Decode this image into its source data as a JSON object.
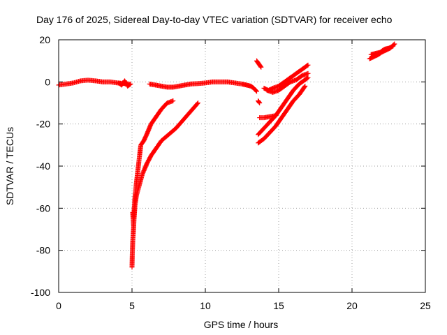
{
  "chart_data": {
    "type": "scatter",
    "title": "Day 176 of 2025, Sidereal Day-to-day VTEC variation (SDTVAR) for receiver echo",
    "xlabel": "GPS time / hours",
    "ylabel": "SDTVAR / TECUs",
    "xlim": [
      0,
      25
    ],
    "ylim": [
      -100,
      20
    ],
    "xticks": [
      "0",
      "5",
      "10",
      "15",
      "20",
      "25"
    ],
    "yticks": [
      "-100",
      "-80",
      "-60",
      "-40",
      "-20",
      "0",
      "20"
    ],
    "grid": true,
    "marker": "plus",
    "color": "#ff0000",
    "series": [
      {
        "x": [
          0.0,
          0.5,
          1.0,
          1.5,
          2.0,
          2.5,
          3.0,
          3.5,
          4.0,
          4.5,
          4.8
        ],
        "y": [
          -1.5,
          -1.0,
          -0.5,
          0.5,
          0.8,
          0.5,
          0.0,
          0.0,
          -0.5,
          -0.8,
          -1.0
        ]
      },
      {
        "x": [
          4.1,
          4.3,
          4.5,
          4.7,
          4.9
        ],
        "y": [
          -0.5,
          -1.5,
          0.5,
          -2.0,
          -1.0
        ]
      },
      {
        "x": [
          6.2,
          6.6,
          7.0,
          7.4,
          7.8,
          8.2,
          8.6,
          9.0,
          9.5,
          10.0,
          10.5,
          11.0,
          11.5,
          12.0,
          12.5,
          12.8,
          13.1,
          13.3,
          13.5
        ],
        "y": [
          -1.0,
          -1.5,
          -2.0,
          -2.5,
          -2.5,
          -2.0,
          -1.5,
          -1.0,
          -0.8,
          -0.5,
          0.0,
          0.0,
          0.0,
          -0.5,
          -1.0,
          -1.5,
          -2.0,
          -3.0,
          -4.5
        ]
      },
      {
        "x": [
          5.05,
          5.1,
          5.15,
          5.2,
          5.3,
          5.4,
          5.5,
          5.6,
          5.8,
          6.0,
          6.3,
          6.7,
          7.0,
          7.4,
          7.8
        ],
        "y": [
          -62,
          -68,
          -60,
          -55,
          -48,
          -42,
          -36,
          -30,
          -28,
          -25,
          -20,
          -16,
          -13,
          -10,
          -9
        ]
      },
      {
        "x": [
          5.0,
          5.02,
          5.05,
          5.1,
          5.15,
          5.2,
          5.3,
          5.5,
          5.7,
          6.0,
          6.3,
          6.7,
          7.0,
          7.5,
          8.0,
          8.5,
          9.0,
          9.5
        ],
        "y": [
          -88,
          -82,
          -76,
          -70,
          -64,
          -59,
          -54,
          -49,
          -44,
          -39,
          -35,
          -31,
          -28,
          -25,
          -22,
          -18,
          -14,
          -10
        ]
      },
      {
        "x": [
          13.5,
          13.6,
          13.7,
          13.8
        ],
        "y": [
          10,
          9,
          8,
          7
        ]
      },
      {
        "x": [
          13.6,
          13.7
        ],
        "y": [
          -9,
          -10
        ]
      },
      {
        "x": [
          13.6,
          14.0,
          14.4,
          14.8,
          15.2,
          15.6,
          16.0,
          16.4,
          16.8,
          17.0
        ],
        "y": [
          -25,
          -22,
          -19,
          -16,
          -12,
          -8,
          -4,
          -1,
          1,
          2
        ]
      },
      {
        "x": [
          13.6,
          14.0,
          14.4,
          14.8,
          15.2,
          15.6,
          16.0,
          16.4,
          16.8
        ],
        "y": [
          -29,
          -27,
          -24,
          -21,
          -17,
          -13,
          -9,
          -6,
          -2
        ]
      },
      {
        "x": [
          13.7,
          14.0,
          14.4,
          14.8
        ],
        "y": [
          -17,
          -17,
          -16.5,
          -16
        ]
      },
      {
        "x": [
          14.0,
          14.3,
          14.6,
          15.0,
          15.4,
          15.8,
          16.2,
          16.6,
          17.0
        ],
        "y": [
          -3,
          -4,
          -3,
          -2,
          0,
          2,
          4,
          6,
          8
        ]
      },
      {
        "x": [
          14.2,
          14.6,
          15.0,
          15.4,
          15.8,
          16.2,
          16.6,
          17.0
        ],
        "y": [
          -4,
          -5,
          -4,
          -2,
          0,
          1,
          3,
          4
        ]
      },
      {
        "x": [
          21.2,
          21.5,
          21.8,
          22.0,
          22.3,
          22.6,
          22.9
        ],
        "y": [
          11,
          12,
          13,
          14,
          15,
          16,
          18
        ]
      },
      {
        "x": [
          21.3,
          21.6,
          21.9,
          22.2,
          22.5,
          22.8
        ],
        "y": [
          13,
          13.5,
          14,
          15.5,
          16,
          17
        ]
      }
    ]
  }
}
